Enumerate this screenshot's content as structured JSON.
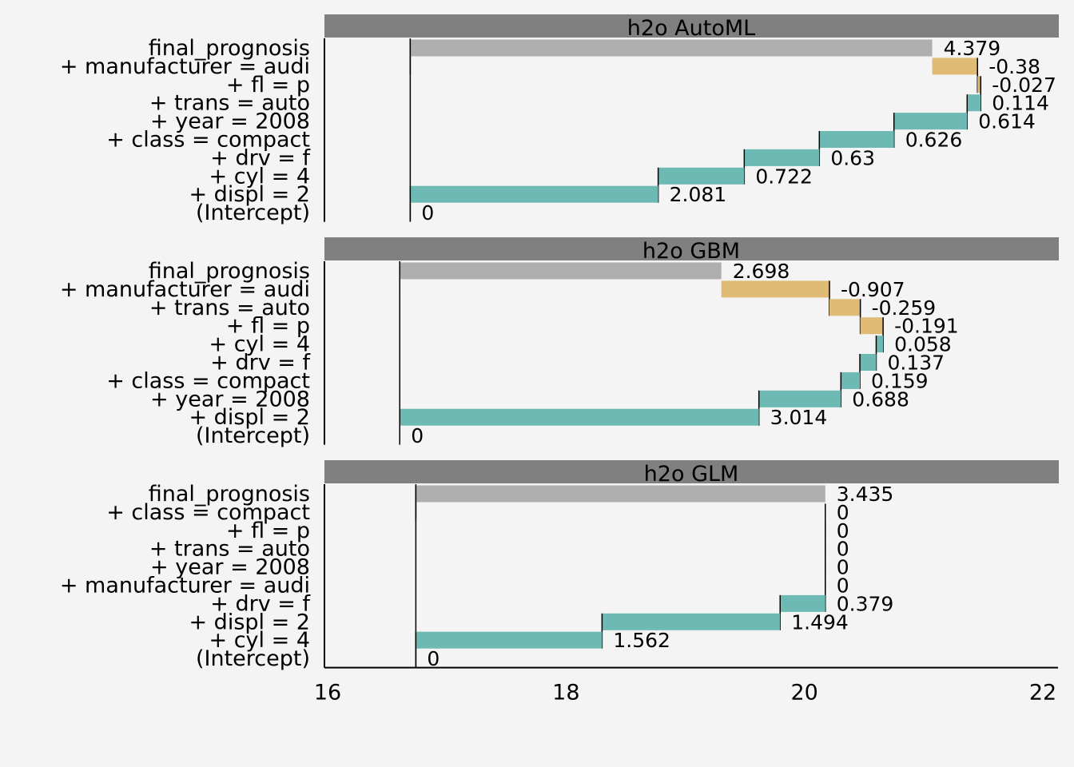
{
  "chart_data": {
    "type": "waterfall",
    "x_ticks": [
      16,
      18,
      20,
      22
    ],
    "xlim": [
      16,
      22
    ],
    "grid": false,
    "colors": {
      "background": "#f4f4f4",
      "strip": "#808080",
      "total": "#afafaf",
      "positive": "#6cbab3",
      "negative": "#dfbb76"
    },
    "panels": [
      {
        "title": "h2o AutoML",
        "intercept": 16.693,
        "rows": [
          {
            "label": "final_prognosis",
            "kind": "total",
            "start": 16.693,
            "end": 21.072,
            "value_label": "4.379"
          },
          {
            "label": "+ manufacturer = audi",
            "kind": "contribution",
            "start": 21.452,
            "end": 21.072,
            "value_label": "-0.38"
          },
          {
            "label": "+ fl = p",
            "kind": "contribution",
            "start": 21.479,
            "end": 21.452,
            "value_label": "-0.027"
          },
          {
            "label": "+ trans = auto",
            "kind": "contribution",
            "start": 21.365,
            "end": 21.479,
            "value_label": "0.114"
          },
          {
            "label": "+ year = 2008",
            "kind": "contribution",
            "start": 20.751,
            "end": 21.365,
            "value_label": "0.614"
          },
          {
            "label": "+ class = compact",
            "kind": "contribution",
            "start": 20.125,
            "end": 20.751,
            "value_label": "0.626"
          },
          {
            "label": "+ drv = f",
            "kind": "contribution",
            "start": 19.495,
            "end": 20.125,
            "value_label": "0.63"
          },
          {
            "label": "+ cyl = 4",
            "kind": "contribution",
            "start": 18.773,
            "end": 19.495,
            "value_label": "0.722"
          },
          {
            "label": "+ displ = 2",
            "kind": "contribution",
            "start": 16.693,
            "end": 18.773,
            "value_label": "2.081"
          },
          {
            "label": "(Intercept)",
            "kind": "intercept",
            "start": 16.693,
            "end": 16.693,
            "value_label": "0"
          }
        ]
      },
      {
        "title": "h2o GBM",
        "intercept": 16.605,
        "rows": [
          {
            "label": "final_prognosis",
            "kind": "total",
            "start": 16.605,
            "end": 19.303,
            "value_label": "2.698"
          },
          {
            "label": "+ manufacturer = audi",
            "kind": "contribution",
            "start": 20.21,
            "end": 19.303,
            "value_label": "-0.907"
          },
          {
            "label": "+ trans = auto",
            "kind": "contribution",
            "start": 20.469,
            "end": 20.21,
            "value_label": "-0.259"
          },
          {
            "label": "+ fl = p",
            "kind": "contribution",
            "start": 20.66,
            "end": 20.469,
            "value_label": "-0.191"
          },
          {
            "label": "+ cyl = 4",
            "kind": "contribution",
            "start": 20.602,
            "end": 20.66,
            "value_label": "0.058"
          },
          {
            "label": "+ drv = f",
            "kind": "contribution",
            "start": 20.465,
            "end": 20.602,
            "value_label": "0.137"
          },
          {
            "label": "+ class = compact",
            "kind": "contribution",
            "start": 20.306,
            "end": 20.465,
            "value_label": "0.159"
          },
          {
            "label": "+ year = 2008",
            "kind": "contribution",
            "start": 19.618,
            "end": 20.306,
            "value_label": "0.688"
          },
          {
            "label": "+ displ = 2",
            "kind": "contribution",
            "start": 16.605,
            "end": 19.618,
            "value_label": "3.014"
          },
          {
            "label": "(Intercept)",
            "kind": "intercept",
            "start": 16.605,
            "end": 16.605,
            "value_label": "0"
          }
        ]
      },
      {
        "title": "h2o GLM",
        "intercept": 16.74,
        "rows": [
          {
            "label": "final_prognosis",
            "kind": "total",
            "start": 16.74,
            "end": 20.175,
            "value_label": "3.435"
          },
          {
            "label": "+ class = compact",
            "kind": "contribution",
            "start": 20.175,
            "end": 20.175,
            "value_label": "0"
          },
          {
            "label": "+ fl = p",
            "kind": "contribution",
            "start": 20.175,
            "end": 20.175,
            "value_label": "0"
          },
          {
            "label": "+ trans = auto",
            "kind": "contribution",
            "start": 20.175,
            "end": 20.175,
            "value_label": "0"
          },
          {
            "label": "+ year = 2008",
            "kind": "contribution",
            "start": 20.175,
            "end": 20.175,
            "value_label": "0"
          },
          {
            "label": "+ manufacturer = audi",
            "kind": "contribution",
            "start": 20.175,
            "end": 20.175,
            "value_label": "0"
          },
          {
            "label": "+ drv = f",
            "kind": "contribution",
            "start": 19.796,
            "end": 20.175,
            "value_label": "0.379"
          },
          {
            "label": "+ displ = 2",
            "kind": "contribution",
            "start": 18.302,
            "end": 19.796,
            "value_label": "1.494"
          },
          {
            "label": "+ cyl = 4",
            "kind": "contribution",
            "start": 16.74,
            "end": 18.302,
            "value_label": "1.562"
          },
          {
            "label": "(Intercept)",
            "kind": "intercept",
            "start": 16.74,
            "end": 16.74,
            "value_label": "0"
          }
        ]
      }
    ]
  }
}
